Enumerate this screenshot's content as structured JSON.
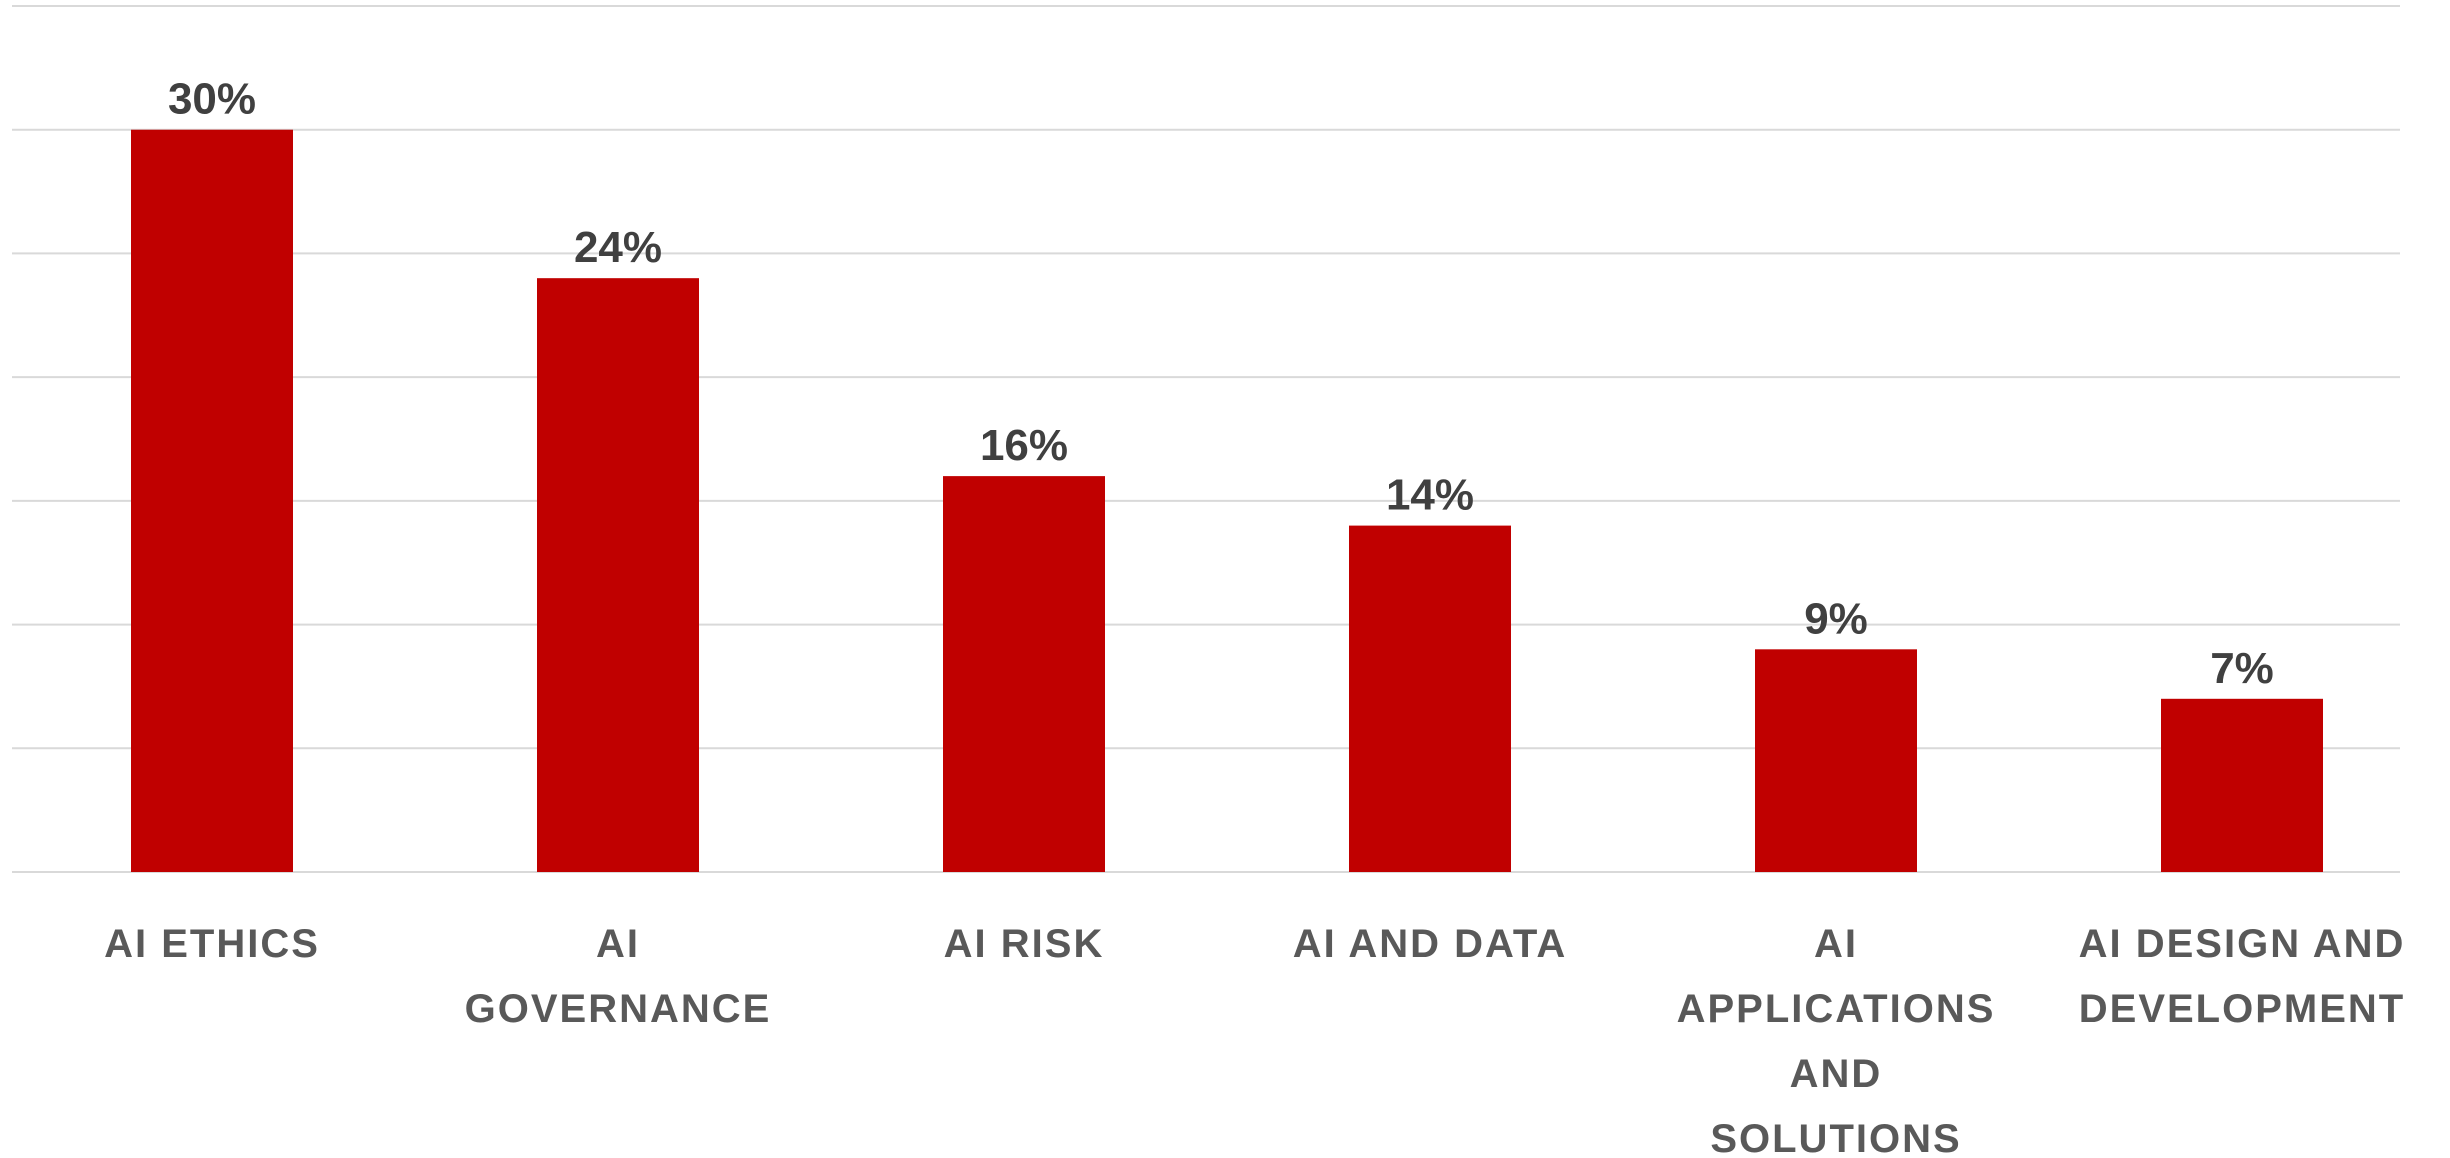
{
  "chart_data": {
    "type": "bar",
    "categories": [
      "AI ETHICS",
      "AI GOVERNANCE",
      "AI RISK",
      "AI AND DATA",
      "AI APPLICATIONS AND SOLUTIONS",
      "AI DESIGN AND DEVELOPMENT"
    ],
    "values": [
      30,
      24,
      16,
      14,
      9,
      7
    ],
    "value_labels": [
      "30%",
      "24%",
      "16%",
      "14%",
      "9%",
      "7%"
    ],
    "color": "#c00000",
    "ylim": [
      0,
      35
    ],
    "yticks": [
      0,
      5,
      10,
      15,
      20,
      25,
      30,
      35
    ],
    "grid": true
  }
}
